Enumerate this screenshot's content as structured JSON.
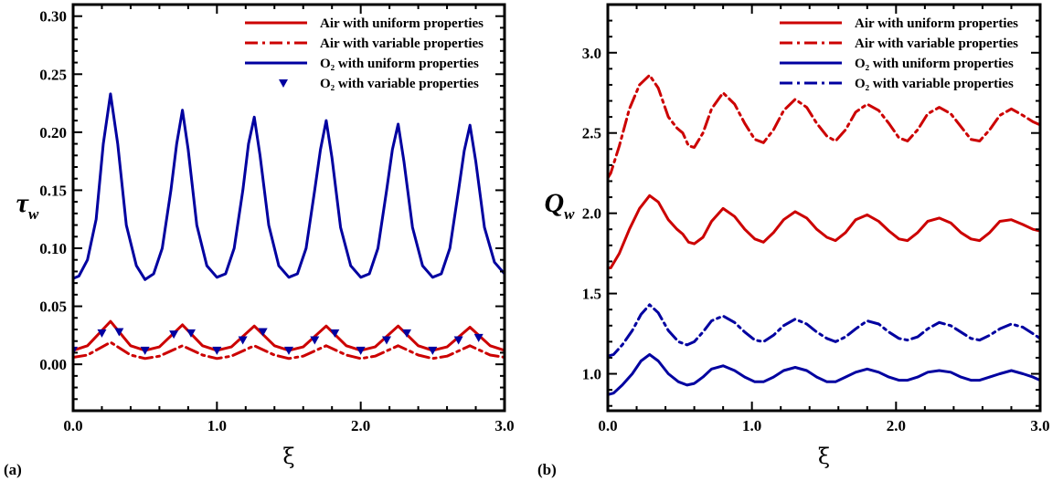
{
  "chart_data": [
    {
      "type": "line",
      "panel_label": "(a)",
      "xlabel": "ξ",
      "ylabel_main": "τ",
      "ylabel_sub": "w",
      "xlim": [
        0.0,
        3.0
      ],
      "ylim": [
        -0.04,
        0.31
      ],
      "xticks": [
        0.0,
        1.0,
        2.0,
        3.0
      ],
      "xtick_labels": [
        "0.0",
        "1.0",
        "2.0",
        "3.0"
      ],
      "yticks": [
        0.0,
        0.05,
        0.1,
        0.15,
        0.2,
        0.25,
        0.3
      ],
      "ytick_labels": [
        "0.00",
        "0.05",
        "0.10",
        "0.15",
        "0.20",
        "0.25",
        "0.30"
      ],
      "legend_position": "top-right",
      "series": [
        {
          "name": "Air with uniform properties",
          "color": "#cc0000",
          "style": "solid",
          "x": [
            0.0,
            0.1,
            0.26,
            0.4,
            0.5,
            0.6,
            0.76,
            0.9,
            1.0,
            1.1,
            1.26,
            1.4,
            1.5,
            1.6,
            1.76,
            1.9,
            2.0,
            2.1,
            2.26,
            2.4,
            2.5,
            2.6,
            2.76,
            2.9,
            3.0
          ],
          "y": [
            0.012,
            0.016,
            0.037,
            0.016,
            0.012,
            0.015,
            0.034,
            0.016,
            0.012,
            0.015,
            0.033,
            0.016,
            0.012,
            0.015,
            0.033,
            0.016,
            0.012,
            0.015,
            0.033,
            0.016,
            0.012,
            0.015,
            0.032,
            0.016,
            0.012
          ]
        },
        {
          "name": "Air with variable properties",
          "color": "#cc0000",
          "style": "dashdot",
          "x": [
            0.0,
            0.1,
            0.26,
            0.4,
            0.5,
            0.6,
            0.76,
            0.9,
            1.0,
            1.1,
            1.26,
            1.4,
            1.5,
            1.6,
            1.76,
            1.9,
            2.0,
            2.1,
            2.26,
            2.4,
            2.5,
            2.6,
            2.76,
            2.9,
            3.0
          ],
          "y": [
            0.006,
            0.008,
            0.019,
            0.008,
            0.005,
            0.007,
            0.016,
            0.008,
            0.005,
            0.007,
            0.016,
            0.008,
            0.005,
            0.007,
            0.016,
            0.008,
            0.005,
            0.007,
            0.016,
            0.008,
            0.005,
            0.007,
            0.016,
            0.008,
            0.006
          ]
        },
        {
          "name": "O₂ with uniform properties",
          "color": "#0000a0",
          "style": "solid",
          "x": [
            0.0,
            0.04,
            0.1,
            0.16,
            0.21,
            0.26,
            0.31,
            0.37,
            0.44,
            0.5,
            0.56,
            0.62,
            0.68,
            0.72,
            0.76,
            0.8,
            0.86,
            0.93,
            1.0,
            1.06,
            1.12,
            1.18,
            1.22,
            1.26,
            1.3,
            1.36,
            1.43,
            1.5,
            1.56,
            1.62,
            1.68,
            1.72,
            1.76,
            1.8,
            1.86,
            1.93,
            2.0,
            2.06,
            2.12,
            2.18,
            2.22,
            2.26,
            2.3,
            2.36,
            2.43,
            2.5,
            2.56,
            2.62,
            2.68,
            2.72,
            2.76,
            2.8,
            2.86,
            2.93,
            3.0
          ],
          "y": [
            0.074,
            0.076,
            0.09,
            0.125,
            0.19,
            0.233,
            0.19,
            0.12,
            0.085,
            0.073,
            0.078,
            0.1,
            0.15,
            0.19,
            0.219,
            0.185,
            0.12,
            0.085,
            0.075,
            0.078,
            0.1,
            0.15,
            0.19,
            0.213,
            0.18,
            0.12,
            0.085,
            0.075,
            0.078,
            0.1,
            0.15,
            0.185,
            0.21,
            0.178,
            0.118,
            0.085,
            0.075,
            0.078,
            0.1,
            0.15,
            0.185,
            0.207,
            0.175,
            0.118,
            0.085,
            0.075,
            0.078,
            0.1,
            0.15,
            0.184,
            0.206,
            0.175,
            0.118,
            0.088,
            0.078
          ]
        },
        {
          "name": "O₂ with variable properties",
          "color": "#0000a0",
          "style": "markers",
          "x": [
            0.0,
            0.2,
            0.32,
            0.5,
            0.7,
            0.82,
            1.0,
            1.18,
            1.32,
            1.5,
            1.68,
            1.82,
            2.0,
            2.18,
            2.32,
            2.5,
            2.68,
            2.82
          ],
          "y": [
            0.012,
            0.027,
            0.028,
            0.012,
            0.026,
            0.027,
            0.012,
            0.021,
            0.028,
            0.012,
            0.021,
            0.027,
            0.012,
            0.021,
            0.027,
            0.012,
            0.021,
            0.023
          ]
        }
      ]
    },
    {
      "type": "line",
      "panel_label": "(b)",
      "xlabel": "ξ",
      "ylabel_main": "Q",
      "ylabel_sub": "w",
      "xlim": [
        0.0,
        3.0
      ],
      "ylim": [
        0.77,
        3.3
      ],
      "xticks": [
        0.0,
        1.0,
        2.0,
        3.0
      ],
      "xtick_labels": [
        "0.0",
        "1.0",
        "2.0",
        "3.0"
      ],
      "yticks": [
        1.0,
        1.5,
        2.0,
        2.5,
        3.0
      ],
      "ytick_labels": [
        "1.0",
        "1.5",
        "2.0",
        "2.5",
        "3.0"
      ],
      "legend_position": "top-right",
      "series": [
        {
          "name": "Air with uniform properties",
          "color": "#cc0000",
          "style": "solid",
          "x": [
            0.0,
            0.02,
            0.08,
            0.15,
            0.22,
            0.29,
            0.35,
            0.42,
            0.48,
            0.52,
            0.56,
            0.6,
            0.66,
            0.72,
            0.8,
            0.88,
            0.95,
            1.02,
            1.08,
            1.15,
            1.22,
            1.3,
            1.38,
            1.45,
            1.52,
            1.58,
            1.65,
            1.72,
            1.8,
            1.88,
            1.95,
            2.02,
            2.08,
            2.15,
            2.22,
            2.3,
            2.38,
            2.45,
            2.52,
            2.58,
            2.65,
            2.72,
            2.8,
            2.88,
            2.95,
            3.0
          ],
          "y": [
            1.66,
            1.66,
            1.75,
            1.9,
            2.03,
            2.11,
            2.07,
            1.96,
            1.9,
            1.87,
            1.82,
            1.81,
            1.85,
            1.95,
            2.03,
            1.98,
            1.9,
            1.84,
            1.82,
            1.88,
            1.96,
            2.01,
            1.97,
            1.9,
            1.85,
            1.83,
            1.88,
            1.96,
            1.99,
            1.95,
            1.89,
            1.84,
            1.83,
            1.88,
            1.95,
            1.97,
            1.94,
            1.88,
            1.84,
            1.83,
            1.88,
            1.95,
            1.96,
            1.93,
            1.9,
            1.89
          ]
        },
        {
          "name": "Air with variable properties",
          "color": "#cc0000",
          "style": "dashdot",
          "x": [
            0.0,
            0.02,
            0.08,
            0.15,
            0.22,
            0.29,
            0.35,
            0.42,
            0.48,
            0.52,
            0.56,
            0.6,
            0.66,
            0.72,
            0.8,
            0.88,
            0.95,
            1.02,
            1.08,
            1.15,
            1.22,
            1.3,
            1.38,
            1.45,
            1.52,
            1.58,
            1.65,
            1.72,
            1.8,
            1.88,
            1.95,
            2.02,
            2.08,
            2.15,
            2.22,
            2.3,
            2.38,
            2.45,
            2.52,
            2.58,
            2.65,
            2.72,
            2.8,
            2.88,
            2.95,
            3.0
          ],
          "y": [
            2.22,
            2.25,
            2.42,
            2.65,
            2.8,
            2.86,
            2.78,
            2.6,
            2.53,
            2.5,
            2.42,
            2.41,
            2.5,
            2.65,
            2.75,
            2.68,
            2.56,
            2.46,
            2.44,
            2.52,
            2.64,
            2.71,
            2.66,
            2.56,
            2.48,
            2.45,
            2.52,
            2.63,
            2.68,
            2.64,
            2.56,
            2.47,
            2.45,
            2.52,
            2.62,
            2.66,
            2.62,
            2.54,
            2.46,
            2.45,
            2.52,
            2.61,
            2.65,
            2.61,
            2.57,
            2.55
          ]
        },
        {
          "name": "O₂ with uniform properties",
          "color": "#0000a0",
          "style": "solid",
          "x": [
            0.0,
            0.04,
            0.1,
            0.17,
            0.23,
            0.29,
            0.35,
            0.42,
            0.49,
            0.55,
            0.6,
            0.66,
            0.72,
            0.8,
            0.88,
            0.95,
            1.02,
            1.08,
            1.15,
            1.22,
            1.3,
            1.38,
            1.45,
            1.52,
            1.58,
            1.65,
            1.72,
            1.8,
            1.88,
            1.95,
            2.02,
            2.08,
            2.15,
            2.22,
            2.3,
            2.38,
            2.45,
            2.52,
            2.58,
            2.65,
            2.72,
            2.8,
            2.88,
            2.95,
            3.0
          ],
          "y": [
            0.87,
            0.88,
            0.93,
            1.0,
            1.08,
            1.12,
            1.08,
            1.0,
            0.95,
            0.93,
            0.94,
            0.98,
            1.03,
            1.05,
            1.02,
            0.98,
            0.95,
            0.95,
            0.98,
            1.02,
            1.04,
            1.02,
            0.98,
            0.95,
            0.95,
            0.98,
            1.01,
            1.03,
            1.01,
            0.98,
            0.96,
            0.96,
            0.98,
            1.01,
            1.02,
            1.01,
            0.98,
            0.96,
            0.96,
            0.98,
            1.0,
            1.02,
            1.0,
            0.98,
            0.96
          ]
        },
        {
          "name": "O₂ with variable properties",
          "color": "#0000a0",
          "style": "dashdot",
          "x": [
            0.0,
            0.04,
            0.1,
            0.17,
            0.23,
            0.29,
            0.35,
            0.42,
            0.49,
            0.55,
            0.6,
            0.66,
            0.72,
            0.8,
            0.88,
            0.95,
            1.02,
            1.08,
            1.15,
            1.22,
            1.3,
            1.38,
            1.45,
            1.52,
            1.58,
            1.65,
            1.72,
            1.8,
            1.88,
            1.95,
            2.02,
            2.08,
            2.15,
            2.22,
            2.3,
            2.38,
            2.45,
            2.52,
            2.58,
            2.65,
            2.72,
            2.8,
            2.88,
            2.95,
            3.0
          ],
          "y": [
            1.11,
            1.12,
            1.18,
            1.27,
            1.37,
            1.43,
            1.38,
            1.27,
            1.2,
            1.18,
            1.2,
            1.26,
            1.33,
            1.36,
            1.32,
            1.26,
            1.21,
            1.2,
            1.24,
            1.3,
            1.34,
            1.31,
            1.26,
            1.22,
            1.2,
            1.23,
            1.28,
            1.33,
            1.31,
            1.26,
            1.22,
            1.21,
            1.23,
            1.28,
            1.32,
            1.3,
            1.26,
            1.22,
            1.21,
            1.24,
            1.28,
            1.31,
            1.29,
            1.25,
            1.22
          ]
        }
      ]
    }
  ]
}
